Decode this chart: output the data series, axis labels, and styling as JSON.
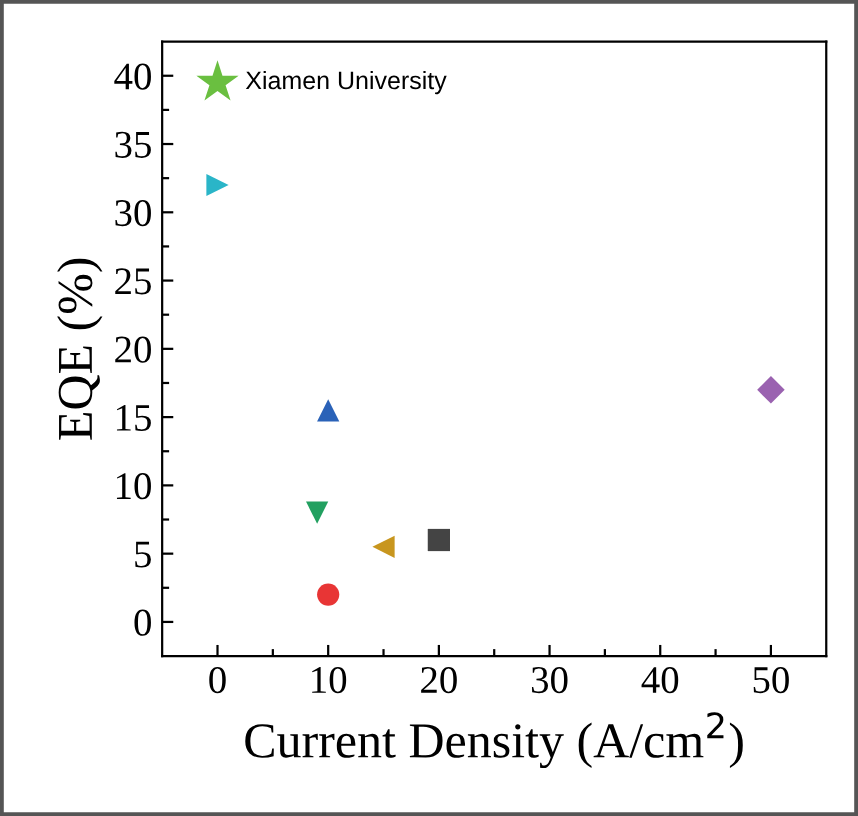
{
  "chart_data": {
    "type": "scatter",
    "xlabel": "Current Density (A/cm$^{2}$)",
    "ylabel": "EQE (%)",
    "xlim": [
      -5,
      55
    ],
    "ylim": [
      -2.5,
      42.5
    ],
    "xticks": [
      0,
      {
        "value": 5,
        "label": null
      },
      10,
      {
        "value": 15,
        "label": null
      },
      20,
      {
        "value": 25,
        "label": null
      },
      30,
      {
        "value": 35,
        "label": null
      },
      40,
      {
        "value": 45,
        "label": null
      },
      50
    ],
    "yticks": [
      0,
      {
        "value": 2.5,
        "label": null
      },
      5,
      {
        "value": 7.5,
        "label": null
      },
      10,
      {
        "value": 12.5,
        "label": null
      },
      15,
      {
        "value": 17.5,
        "label": null
      },
      20,
      {
        "value": 22.5,
        "label": null
      },
      25,
      {
        "value": 27.5,
        "label": null
      },
      30,
      {
        "value": 32.5,
        "label": null
      },
      35,
      {
        "value": 37.5,
        "label": null
      },
      40
    ],
    "grid": false,
    "series": [
      {
        "name": "Xiamen University",
        "color": "#6abf40",
        "marker": "star",
        "x": [
          0
        ],
        "values": [
          39.5
        ]
      },
      {
        "color": "#2ab5c8",
        "marker": "triangle-right",
        "x": [
          0
        ],
        "values": [
          32
        ]
      },
      {
        "color": "#2a62b8",
        "marker": "triangle",
        "x": [
          10
        ],
        "values": [
          15.5
        ]
      },
      {
        "color": "#22a060",
        "marker": "triangle-down",
        "x": [
          9
        ],
        "values": [
          8
        ]
      },
      {
        "color": "#c8961e",
        "marker": "triangle-left",
        "x": [
          15
        ],
        "values": [
          5.5
        ]
      },
      {
        "color": "#444444",
        "marker": "square",
        "x": [
          20
        ],
        "values": [
          6
        ]
      },
      {
        "color": "#e83535",
        "marker": "circle",
        "x": [
          10
        ],
        "values": [
          2
        ]
      },
      {
        "color": "#9a62b0",
        "marker": "diamond",
        "x": [
          50
        ],
        "values": [
          17
        ]
      }
    ]
  }
}
